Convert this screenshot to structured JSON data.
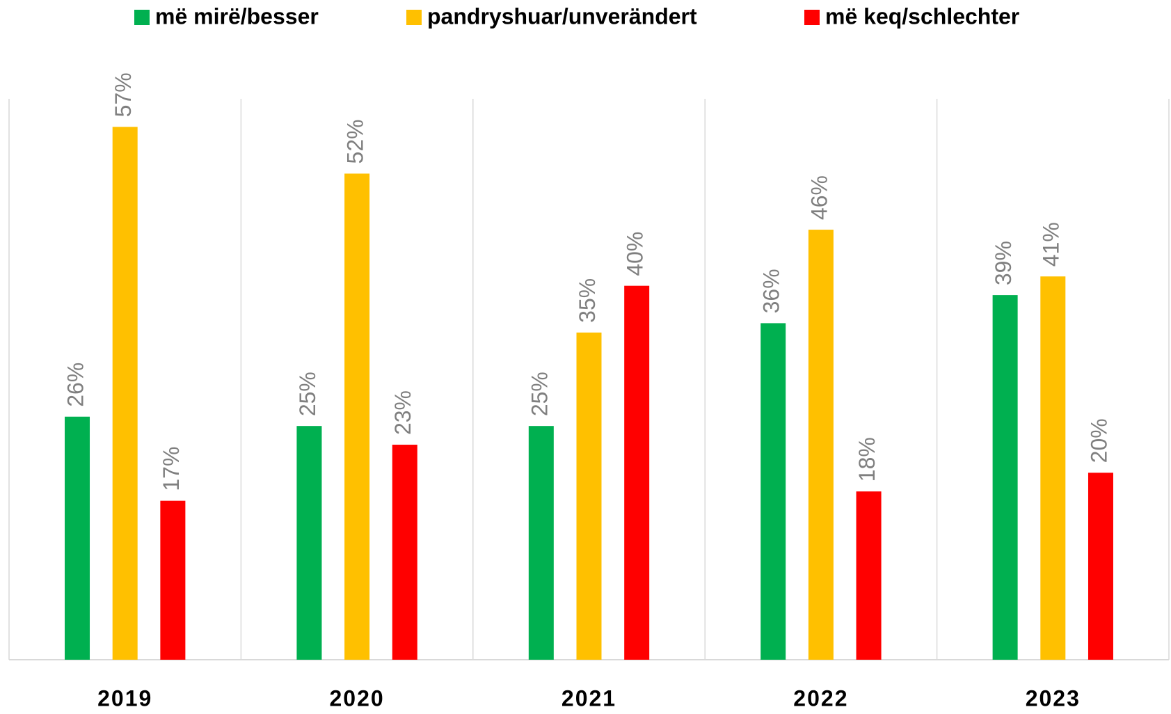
{
  "chart_data": {
    "type": "bar",
    "categories": [
      "2019",
      "2020",
      "2021",
      "2022",
      "2023"
    ],
    "series": [
      {
        "name": "më mirë/besser",
        "color": "#00b050",
        "values": [
          26,
          25,
          25,
          36,
          39
        ],
        "value_labels": [
          "26%",
          "25%",
          "25%",
          "36%",
          "39%"
        ]
      },
      {
        "name": "pandryshuar/unverändert",
        "color": "#ffc000",
        "values": [
          57,
          52,
          35,
          46,
          41
        ],
        "value_labels": [
          "57%",
          "52%",
          "35%",
          "46%",
          "41%"
        ]
      },
      {
        "name": "më keq/schlechter",
        "color": "#ff0000",
        "values": [
          17,
          23,
          40,
          18,
          20
        ],
        "value_labels": [
          "17%",
          "23%",
          "40%",
          "18%",
          "20%"
        ]
      }
    ],
    "ylim": [
      0,
      60
    ],
    "legend": "top"
  }
}
